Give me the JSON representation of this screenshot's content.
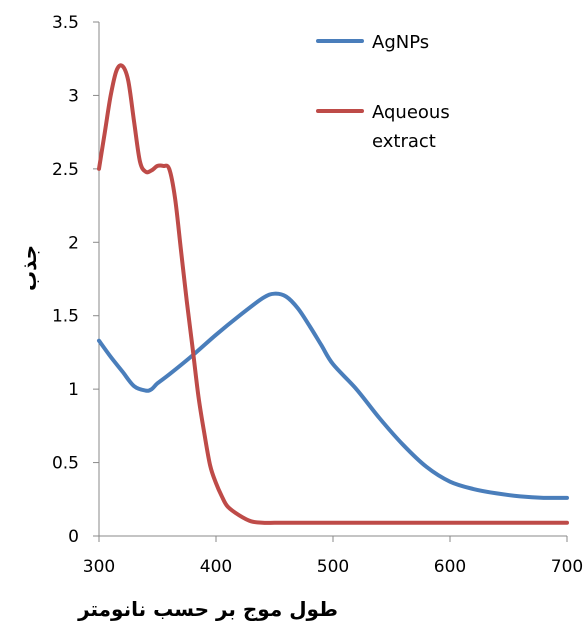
{
  "chart_data": {
    "type": "line",
    "title": "",
    "xlabel": "طول موج بر حسب نانومتر",
    "ylabel": "جذب",
    "xlim": [
      300,
      700
    ],
    "ylim": [
      0,
      3.5
    ],
    "x_ticks": [
      "300",
      "400",
      "500",
      "600",
      "700"
    ],
    "y_ticks": [
      "0",
      "0.5",
      "1",
      "1.5",
      "2",
      "2.5",
      "3",
      "3.5"
    ],
    "grid": false,
    "legend_position": "top-right",
    "series": [
      {
        "name": "AgNPs",
        "color": "#4a7ebb",
        "x": [
          300,
          310,
          320,
          330,
          340,
          345,
          350,
          360,
          380,
          400,
          420,
          440,
          450,
          460,
          470,
          480,
          490,
          500,
          520,
          540,
          560,
          580,
          600,
          620,
          640,
          660,
          680,
          700
        ],
        "y": [
          1.33,
          1.22,
          1.12,
          1.02,
          0.99,
          1.0,
          1.04,
          1.1,
          1.23,
          1.37,
          1.5,
          1.62,
          1.65,
          1.63,
          1.55,
          1.43,
          1.3,
          1.17,
          1.0,
          0.8,
          0.62,
          0.47,
          0.37,
          0.32,
          0.29,
          0.27,
          0.26,
          0.26
        ]
      },
      {
        "name": "Aqueous extract",
        "legend_lines": [
          "Aqueous",
          "extract"
        ],
        "color": "#be4b48",
        "x": [
          300,
          305,
          310,
          315,
          320,
          325,
          330,
          335,
          340,
          345,
          350,
          355,
          360,
          365,
          370,
          375,
          380,
          385,
          390,
          395,
          400,
          405,
          410,
          420,
          430,
          440,
          450,
          460,
          500,
          550,
          600,
          650,
          700
        ],
        "y": [
          2.5,
          2.75,
          3.0,
          3.17,
          3.2,
          3.1,
          2.82,
          2.55,
          2.48,
          2.49,
          2.52,
          2.52,
          2.5,
          2.3,
          1.95,
          1.6,
          1.28,
          0.95,
          0.7,
          0.48,
          0.36,
          0.27,
          0.2,
          0.14,
          0.1,
          0.09,
          0.09,
          0.09,
          0.09,
          0.09,
          0.09,
          0.09,
          0.09
        ]
      }
    ]
  }
}
